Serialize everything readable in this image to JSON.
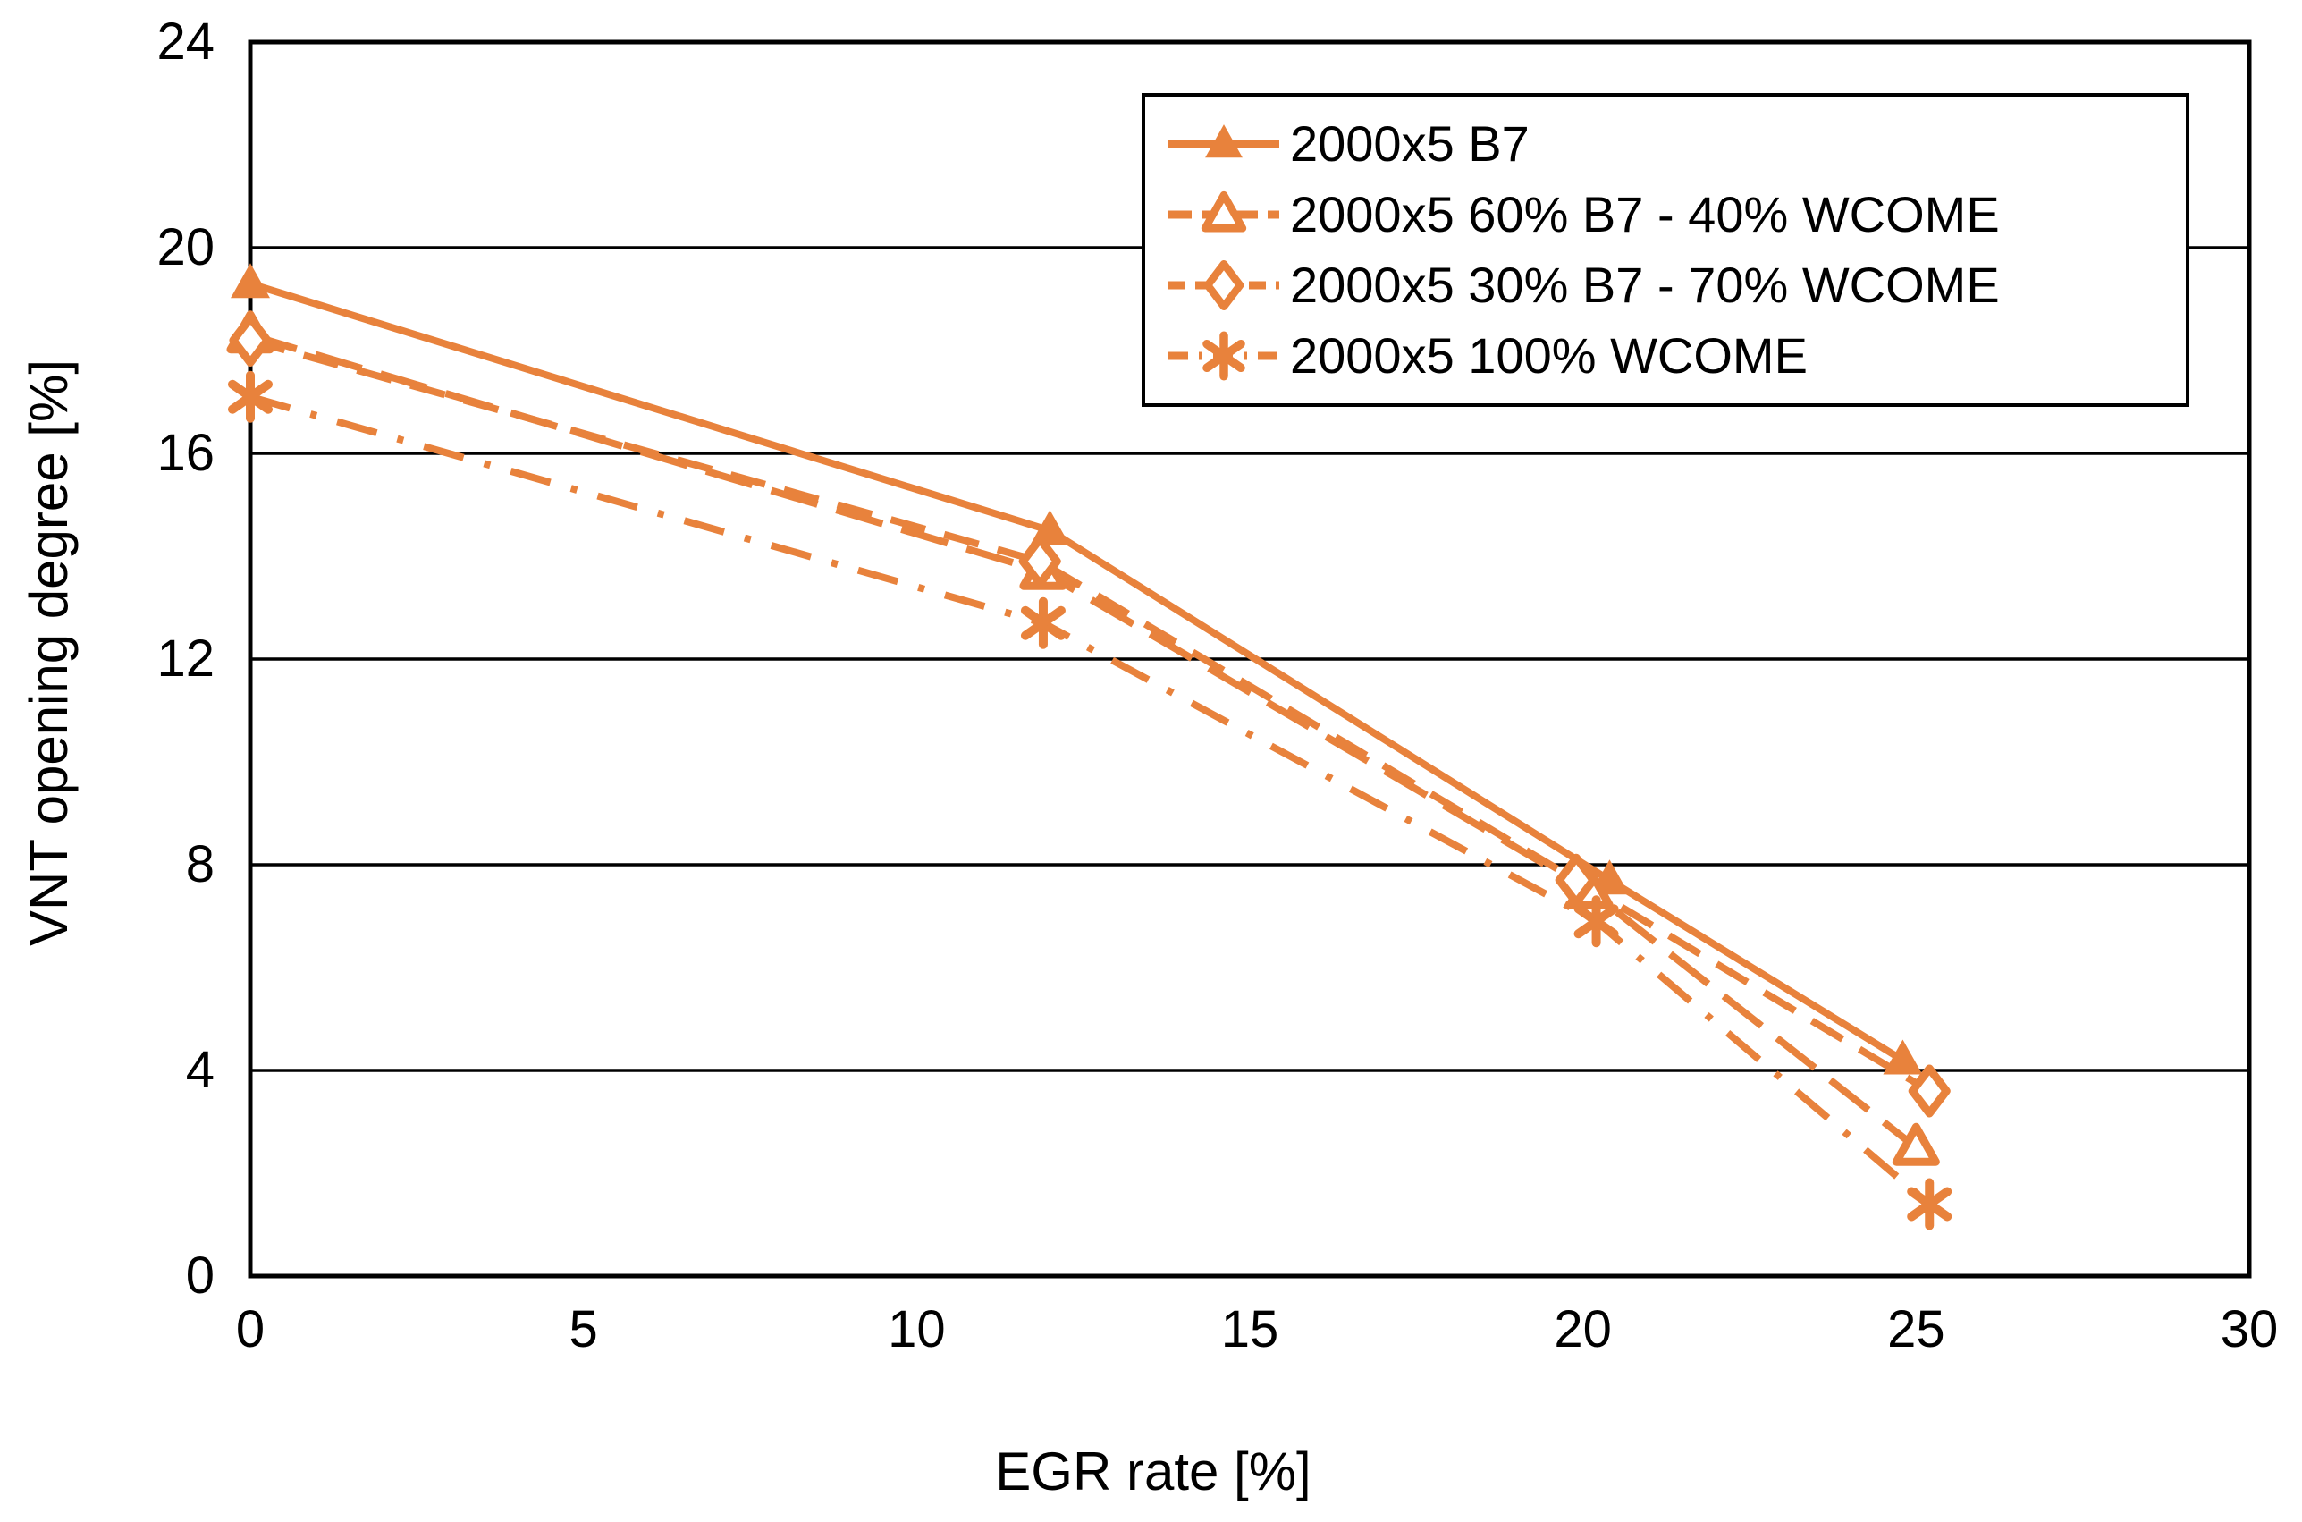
{
  "chart_data": {
    "type": "line",
    "title": "",
    "xlabel": "EGR rate [%]",
    "ylabel": "VNT opening degree [%]",
    "xlim": [
      0,
      30
    ],
    "ylim": [
      0,
      24
    ],
    "x_ticks": [
      0,
      5,
      10,
      15,
      20,
      25,
      30
    ],
    "y_ticks": [
      0,
      4,
      8,
      12,
      16,
      20,
      24
    ],
    "grid": "horizontal-only",
    "legend_position": "top-right-inside",
    "colors": {
      "series": "#E8823C",
      "axis": "#000000",
      "background": "#FFFFFF"
    },
    "series": [
      {
        "name": "2000x5 B7",
        "marker": "triangle-filled",
        "line_style": "solid",
        "points": [
          [
            0,
            19.3
          ],
          [
            12.0,
            14.5
          ],
          [
            20.4,
            7.7
          ],
          [
            24.8,
            4.2
          ]
        ]
      },
      {
        "name": "2000x5 60% B7 - 40% WCOME",
        "marker": "triangle-open",
        "line_style": "long-dash",
        "points": [
          [
            0,
            18.3
          ],
          [
            11.9,
            13.7
          ],
          [
            20.1,
            7.5
          ],
          [
            25.0,
            2.5
          ]
        ]
      },
      {
        "name": "2000x5 30% B7 - 70% WCOME",
        "marker": "diamond-open",
        "line_style": "dash",
        "points": [
          [
            0,
            18.2
          ],
          [
            11.85,
            13.9
          ],
          [
            19.9,
            7.7
          ],
          [
            25.2,
            3.6
          ]
        ]
      },
      {
        "name": "2000x5 100% WCOME",
        "marker": "asterisk",
        "line_style": "dash-dot",
        "points": [
          [
            0,
            17.1
          ],
          [
            11.9,
            12.7
          ],
          [
            20.2,
            6.9
          ],
          [
            25.2,
            1.4
          ]
        ]
      }
    ]
  }
}
